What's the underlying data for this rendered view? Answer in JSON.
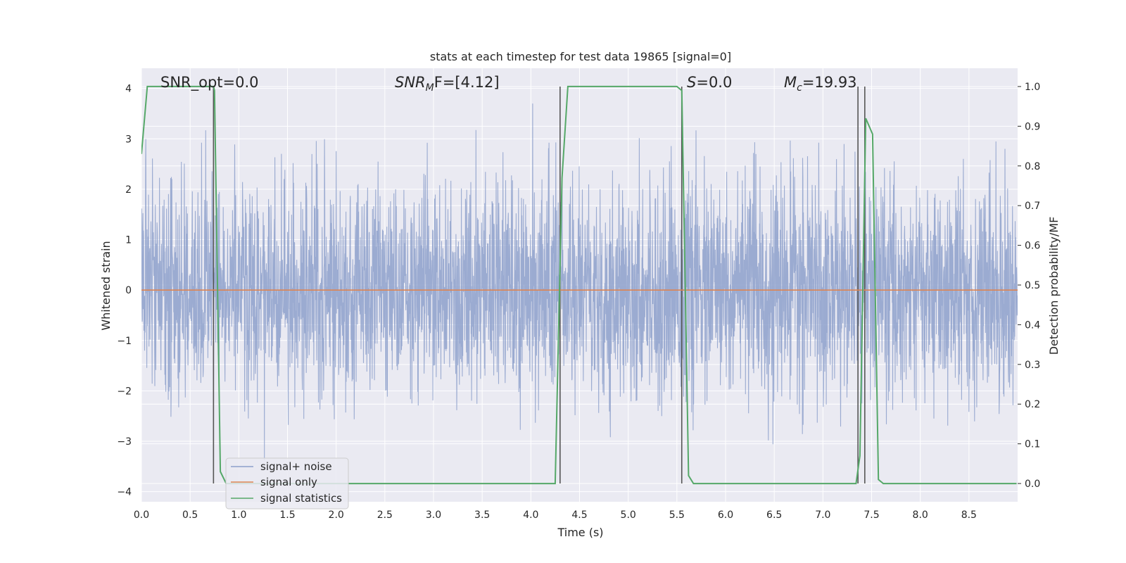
{
  "chart_data": {
    "type": "line",
    "title": "stats at each timestep for test data 19865 [signal=0]",
    "xlabel": "Time (s)",
    "ylabel": "Whitened strain",
    "y2label": "Detection probability/MF",
    "xlim": [
      0.0,
      9.0
    ],
    "ylim": [
      -4.2,
      4.4
    ],
    "y2lim": [
      -0.046,
      1.046
    ],
    "xticks": [
      "0.0",
      "0.5",
      "1.0",
      "1.5",
      "2.0",
      "2.5",
      "3.0",
      "3.5",
      "4.0",
      "4.5",
      "5.0",
      "5.5",
      "6.0",
      "6.5",
      "7.0",
      "7.5",
      "8.0",
      "8.5"
    ],
    "yticks": [
      "4",
      "3",
      "2",
      "1",
      "0",
      "−1",
      "−2",
      "−3",
      "−4"
    ],
    "y2ticks": [
      "1.0",
      "0.9",
      "0.8",
      "0.7",
      "0.6",
      "0.5",
      "0.4",
      "0.3",
      "0.2",
      "0.1",
      "0.0"
    ],
    "grid": true,
    "legend_position": "lower-left",
    "annotations": [
      {
        "id": "snr-opt",
        "text": "SNR_opt=0.0"
      },
      {
        "id": "snr-mf",
        "base": "SNR",
        "sub": "M",
        "rest": "F=[4.12]"
      },
      {
        "id": "s-stat",
        "base": "S",
        "rest": "=0.0"
      },
      {
        "id": "mc",
        "base": "M",
        "sub": "c",
        "rest": "=19.93"
      }
    ],
    "series": [
      {
        "name": "signal+ noise",
        "axis": "left",
        "color": "#8da0cb",
        "note": "whitened noise trace, sampled densely over 0–9 s, amplitude roughly within ±3.7"
      },
      {
        "name": "signal only",
        "axis": "left",
        "color": "#dd8452",
        "x": [
          0.0,
          9.0
        ],
        "y": [
          0.0,
          0.0
        ]
      },
      {
        "name": "signal statistics",
        "axis": "right",
        "color": "#55a868",
        "x": [
          0.0,
          0.06,
          0.1,
          0.74,
          0.75,
          0.81,
          0.87,
          4.25,
          4.32,
          4.38,
          5.5,
          5.55,
          5.62,
          5.67,
          7.34,
          7.38,
          7.44,
          7.51,
          7.57,
          7.62,
          8.99
        ],
        "y": [
          0.83,
          1.0,
          1.0,
          1.0,
          0.99,
          0.03,
          0.0,
          0.0,
          0.77,
          1.0,
          1.0,
          0.99,
          0.02,
          0.0,
          0.0,
          0.07,
          0.92,
          0.88,
          0.01,
          0.0,
          0.0
        ]
      }
    ],
    "vertical_lines": [
      0.74,
      4.3,
      5.55,
      7.36,
      7.43
    ],
    "colors": {
      "background": "#eaeaf2",
      "grid": "#ffffff",
      "noise": "#8da0cb",
      "signal_only": "#dd8452",
      "statistics": "#55a868",
      "vline": "#555555"
    }
  }
}
